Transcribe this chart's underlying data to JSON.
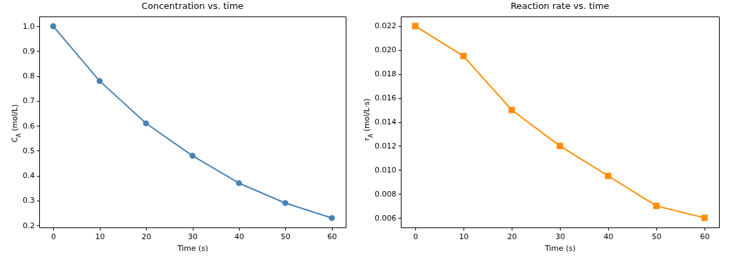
{
  "chart_data": [
    {
      "type": "line",
      "title": "Concentration vs. time",
      "xlabel": "Time (s)",
      "ylabel": "C$_{A}$ (mol/L)",
      "marker": "circle",
      "x": [
        0,
        10,
        20,
        30,
        40,
        50,
        60
      ],
      "series": [
        {
          "color": "#4682b4",
          "values": [
            1.0,
            0.78,
            0.61,
            0.48,
            0.37,
            0.29,
            0.23
          ]
        }
      ],
      "xlim": [
        -3,
        63
      ],
      "xticks": [
        0,
        10,
        20,
        30,
        40,
        50,
        60
      ],
      "ylim": [
        0.192,
        1.039
      ],
      "yticks": [
        0.2,
        0.3,
        0.4,
        0.5,
        0.6,
        0.7,
        0.8,
        0.9,
        {
          "value": 1,
          "label": "1.0"
        }
      ]
    },
    {
      "type": "line",
      "title": "Reaction rate vs. time",
      "xlabel": "Time (s)",
      "ylabel": "r$_{A}$ (mol/L·s)",
      "marker": "square",
      "x": [
        0,
        10,
        20,
        30,
        40,
        50,
        60
      ],
      "series": [
        {
          "color": "#ff8c00",
          "values": [
            0.022,
            0.0195,
            0.015,
            0.012,
            0.0095,
            0.007,
            0.006
          ]
        }
      ],
      "xlim": [
        -3,
        63
      ],
      "xticks": [
        0,
        10,
        20,
        30,
        40,
        50,
        60
      ],
      "ylim": [
        0.0052,
        0.0228
      ],
      "yticks": [
        0.006,
        0.008,
        {
          "value": 0.01,
          "label": "0.010"
        },
        0.012,
        0.014,
        0.016,
        0.018,
        {
          "value": 0.02,
          "label": "0.020"
        },
        0.022
      ]
    }
  ]
}
